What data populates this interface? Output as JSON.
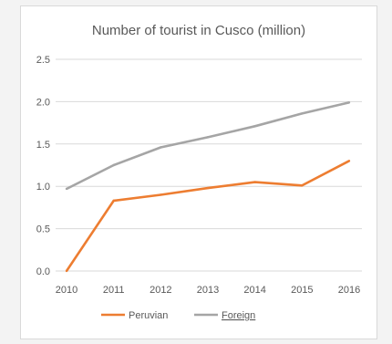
{
  "chart_data": {
    "type": "line",
    "title": "Number of tourist in Cusco (million)",
    "xlabel": "",
    "ylabel": "",
    "categories": [
      "2010",
      "2011",
      "2012",
      "2013",
      "2014",
      "2015",
      "2016"
    ],
    "ylim": [
      0,
      2.5
    ],
    "yticks": [
      "0.0",
      "0.5",
      "1.0",
      "1.5",
      "2.0",
      "2.5"
    ],
    "grid": true,
    "legend_position": "bottom",
    "series": [
      {
        "name": "Peruvian",
        "color": "#ed7d31",
        "values": [
          0.0,
          0.83,
          0.9,
          0.98,
          1.05,
          1.01,
          1.3
        ]
      },
      {
        "name": "Foreign",
        "color": "#a5a5a5",
        "values": [
          0.97,
          1.25,
          1.46,
          1.58,
          1.71,
          1.86,
          1.99
        ]
      }
    ]
  }
}
